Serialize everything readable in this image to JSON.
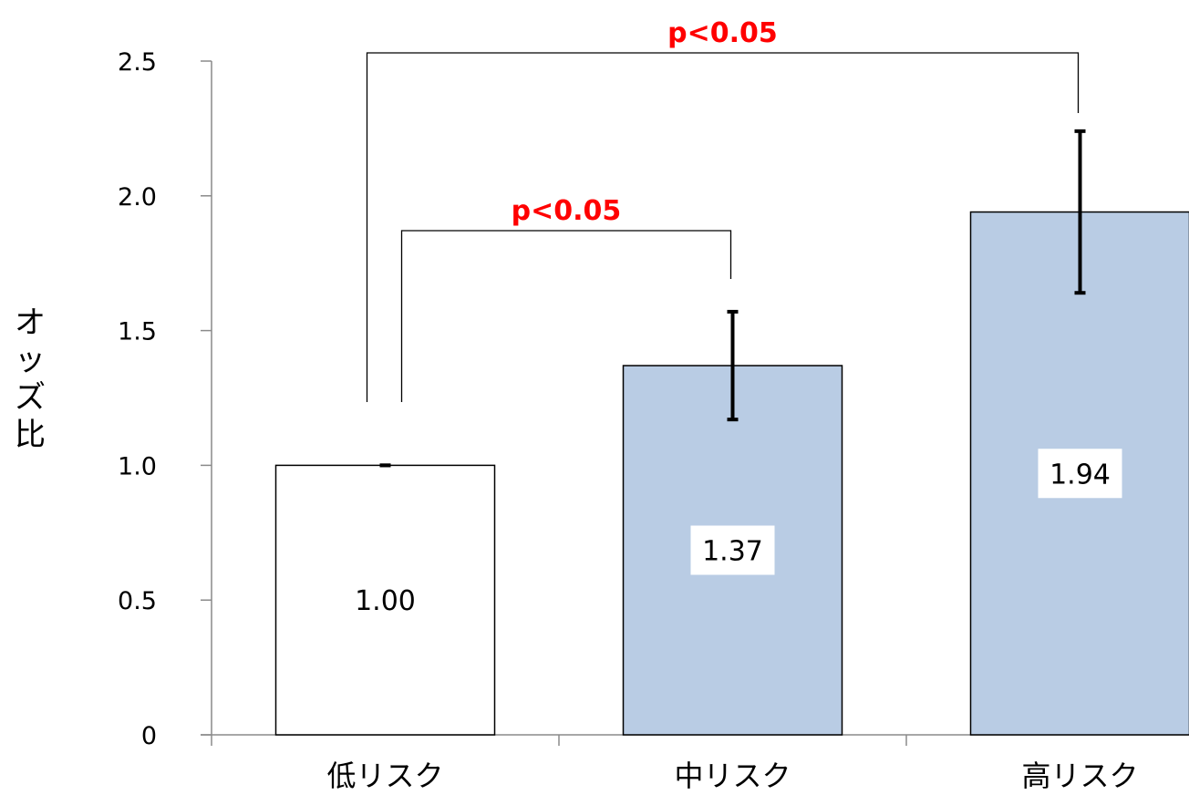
{
  "chart_data": {
    "type": "bar",
    "categories": [
      "低リスク",
      "中リスク",
      "高リスク"
    ],
    "values": [
      1.0,
      1.37,
      1.94
    ],
    "data_labels": [
      "1.00",
      "1.37",
      "1.94"
    ],
    "error_bars": [
      {
        "low": 1.0,
        "high": 1.0
      },
      {
        "low": 1.17,
        "high": 1.57
      },
      {
        "low": 1.64,
        "high": 2.24
      }
    ],
    "bar_colors": [
      "#ffffff",
      "#b9cce4",
      "#b9cce4"
    ],
    "ylabel_chars": [
      "オ",
      "ッ",
      "ズ",
      "比"
    ],
    "ylim": [
      0,
      2.5
    ],
    "yticks": [
      {
        "value": 0,
        "label": "0"
      },
      {
        "value": 0.5,
        "label": "0.5"
      },
      {
        "value": 1.0,
        "label": "1.0"
      },
      {
        "value": 1.5,
        "label": "1.5"
      },
      {
        "value": 2.0,
        "label": "2.0"
      },
      {
        "value": 2.5,
        "label": "2.5"
      }
    ],
    "grid": false,
    "legend": "none",
    "annotations": [
      {
        "from": 0,
        "to": 1,
        "text": "p<0.05",
        "color": "#ff0000"
      },
      {
        "from": 0,
        "to": 2,
        "text": "p<0.05",
        "color": "#ff0000"
      }
    ]
  }
}
